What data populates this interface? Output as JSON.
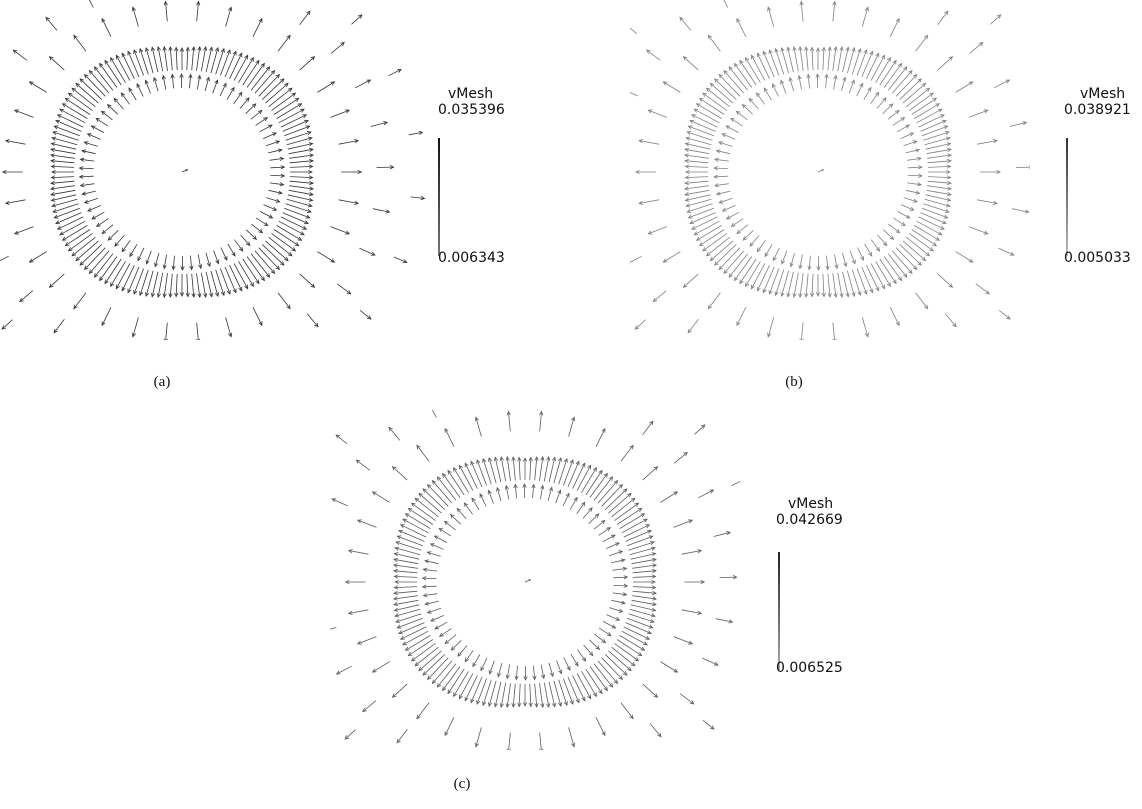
{
  "panels": [
    {
      "id": "a",
      "caption": "(a)",
      "legend": {
        "title": "vMesh",
        "max": "0.035396",
        "min": "0.006343"
      },
      "arrow_color": "#2a2a2a",
      "arrow_opacity": 0.95
    },
    {
      "id": "b",
      "caption": "(b)",
      "legend": {
        "title": "vMesh",
        "max": "0.038921",
        "min": "0.005033"
      },
      "arrow_color": "#6a6a6a",
      "arrow_opacity": 0.85
    },
    {
      "id": "c",
      "caption": "(c)",
      "legend": {
        "title": "vMesh",
        "max": "0.042669",
        "min": "0.006525"
      },
      "arrow_color": "#4a4a4a",
      "arrow_opacity": 0.9
    }
  ]
}
